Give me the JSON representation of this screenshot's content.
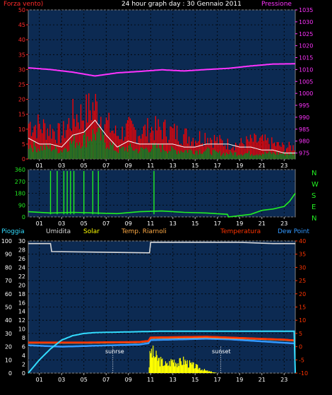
{
  "header": {
    "left_label": "Forza vento)",
    "title": "24 hour graph day : 30 Gennaio 2011",
    "right_label": "Pressione"
  },
  "direction_letters": [
    "N",
    "W",
    "S",
    "E",
    "N"
  ],
  "legend": {
    "pioggia": "Pioggia",
    "umidita": "Umidita",
    "solar": "Solar",
    "temp_riarnoli": "Temp. Riarnoli",
    "temperatura": "Temperatura",
    "dew_point": "Dew Point"
  },
  "annotations": {
    "sunrise": "sunrse",
    "sunset": "sunset"
  },
  "colors": {
    "wind_axis": "#ff2a2a",
    "pressure": "#ff33ff",
    "gust": "#ff0000",
    "avg_wind": "#1a8c1a",
    "wind_line": "#ffffff",
    "direction": "#22ee22",
    "humidity": "#d8d8d8",
    "solar": "#ffff00",
    "temperature": "#ff3300",
    "dew_point": "#3399ff",
    "rain": "#33ddff",
    "plot_bg": "#0c2a52"
  },
  "chart_data": [
    {
      "type": "line",
      "title": "24 hour graph day : 30 Gennaio 2011",
      "x_ticks": [
        "01",
        "03",
        "05",
        "07",
        "09",
        "11",
        "13",
        "15",
        "17",
        "19",
        "21",
        "23"
      ],
      "y_left": {
        "label": "Forza vento)",
        "ticks": [
          0,
          5,
          10,
          15,
          20,
          25,
          30,
          35,
          40,
          45,
          50
        ],
        "range": [
          0,
          50
        ]
      },
      "y_right": {
        "label": "Pressione",
        "ticks": [
          975,
          980,
          985,
          990,
          995,
          1000,
          1005,
          1010,
          1015,
          1020,
          1025,
          1030,
          1035
        ],
        "range": [
          972.5,
          1035
        ]
      },
      "series": [
        {
          "name": "Pressione",
          "axis": "right",
          "x": [
            0,
            2,
            4,
            6,
            8,
            10,
            12,
            14,
            16,
            18,
            20,
            22,
            24
          ],
          "y": [
            1010.7,
            1010.0,
            1008.9,
            1007.3,
            1008.6,
            1009.2,
            1009.9,
            1009.4,
            1010.0,
            1010.5,
            1011.5,
            1012.3,
            1012.4
          ]
        },
        {
          "name": "gust",
          "axis": "left",
          "x": [
            0,
            1,
            2,
            3,
            4,
            5,
            6,
            7,
            8,
            9,
            10,
            11,
            12,
            13,
            14,
            15,
            16,
            17,
            18,
            19,
            20,
            21,
            22,
            23,
            24
          ],
          "y": [
            12,
            11,
            10,
            8,
            14,
            15,
            18,
            12,
            8,
            10,
            9,
            10,
            10,
            9,
            8,
            7,
            8,
            6,
            5,
            5,
            6,
            6,
            5,
            4,
            4
          ]
        },
        {
          "name": "avg",
          "axis": "left",
          "x": [
            0,
            1,
            2,
            3,
            4,
            5,
            6,
            7,
            8,
            9,
            10,
            11,
            12,
            13,
            14,
            15,
            16,
            17,
            18,
            19,
            20,
            21,
            22,
            23,
            24
          ],
          "y": [
            5,
            4,
            4,
            3,
            6,
            7,
            9,
            6,
            3,
            4,
            3,
            4,
            4,
            3,
            3,
            3,
            3,
            2,
            2,
            2,
            2,
            2,
            2,
            2,
            2
          ]
        },
        {
          "name": "wind",
          "axis": "left",
          "x": [
            0,
            1,
            2,
            3,
            4,
            5,
            6,
            7,
            8,
            9,
            10,
            11,
            12,
            13,
            14,
            15,
            16,
            17,
            18,
            19,
            20,
            21,
            22,
            23,
            24
          ],
          "y": [
            7,
            5,
            5,
            4,
            8,
            9,
            13,
            8,
            4,
            6,
            5,
            5,
            5,
            5,
            4,
            4,
            5,
            5,
            5,
            4,
            4,
            3,
            3,
            2,
            2
          ]
        }
      ]
    },
    {
      "type": "line",
      "x_ticks": [
        "01",
        "03",
        "05",
        "07",
        "09",
        "11",
        "13",
        "15",
        "17",
        "19",
        "21",
        "23"
      ],
      "y_left": {
        "ticks": [
          0,
          90,
          180,
          270,
          360
        ],
        "range": [
          0,
          360
        ]
      },
      "series": [
        {
          "name": "direction",
          "x": [
            0,
            2,
            4,
            6,
            8,
            10,
            12,
            14,
            16,
            17.9,
            18,
            20,
            21,
            22,
            23,
            23.5,
            24
          ],
          "y": [
            40,
            30,
            35,
            30,
            25,
            40,
            45,
            35,
            30,
            20,
            0,
            20,
            50,
            60,
            80,
            120,
            180
          ]
        }
      ]
    },
    {
      "type": "line",
      "x_ticks": [
        "01",
        "03",
        "05",
        "07",
        "09",
        "11",
        "13",
        "15",
        "17",
        "19",
        "21",
        "23"
      ],
      "y_left_outer": {
        "ticks": [
          0,
          10,
          20,
          30,
          40,
          50,
          60,
          70,
          80,
          90,
          100
        ],
        "range": [
          0,
          100
        ]
      },
      "y_left_inner": {
        "ticks": [
          0,
          2,
          4,
          6,
          8,
          10,
          12,
          14,
          16,
          18,
          20,
          22,
          24,
          26,
          28,
          30
        ],
        "range": [
          0,
          30
        ]
      },
      "y_right": {
        "ticks": [
          -10,
          -5,
          0,
          5,
          10,
          15,
          20,
          25,
          30,
          35,
          40
        ],
        "range": [
          -10,
          40
        ]
      },
      "series": [
        {
          "name": "Umidita",
          "axis": "outer",
          "x": [
            0,
            2,
            2.1,
            10.9,
            11,
            15,
            19,
            22,
            24
          ],
          "y": [
            98,
            98,
            92,
            91,
            99,
            99,
            99,
            98,
            98
          ]
        },
        {
          "name": "Temperatura",
          "axis": "right",
          "x": [
            0,
            5,
            10,
            10.8,
            11,
            16,
            18,
            21,
            23,
            24
          ],
          "y": [
            1.6,
            1.6,
            1.8,
            2.2,
            3.5,
            3.8,
            3.5,
            3.0,
            2.7,
            2.4
          ]
        },
        {
          "name": "Temp. Riarnoli",
          "axis": "right",
          "x": [
            0,
            5,
            10,
            10.8,
            11,
            16,
            18,
            21,
            23,
            24
          ],
          "y": [
            1.4,
            1.4,
            1.6,
            2.0,
            3.2,
            3.5,
            3.2,
            2.8,
            2.5,
            2.2
          ]
        },
        {
          "name": "Dew Point",
          "axis": "right",
          "x": [
            0,
            3,
            10,
            10.8,
            11,
            16,
            18,
            21,
            24
          ],
          "y": [
            0.5,
            0.0,
            0.8,
            1.3,
            2.5,
            3.0,
            2.8,
            2.0,
            1.2
          ]
        },
        {
          "name": "Pioggia",
          "axis": "inner",
          "x": [
            0,
            0.5,
            1,
            2,
            3,
            4,
            5,
            6,
            8,
            10,
            12,
            14,
            16,
            18,
            20,
            22,
            23.9,
            24
          ],
          "y": [
            0,
            1.5,
            3,
            5.5,
            7.5,
            8.5,
            9,
            9.2,
            9.3,
            9.4,
            9.5,
            9.5,
            9.5,
            9.5,
            9.5,
            9.5,
            9.5,
            0
          ]
        },
        {
          "name": "Solar",
          "axis": "outer",
          "x": [
            10.8,
            11,
            11.3,
            11.7,
            12,
            12.5,
            13,
            13.5,
            14,
            14.5,
            15,
            15.5,
            16,
            16.5,
            17
          ],
          "y": [
            0,
            20,
            16,
            12,
            10,
            7,
            12,
            9,
            11,
            8,
            6,
            4,
            2,
            1,
            0
          ]
        }
      ]
    }
  ]
}
